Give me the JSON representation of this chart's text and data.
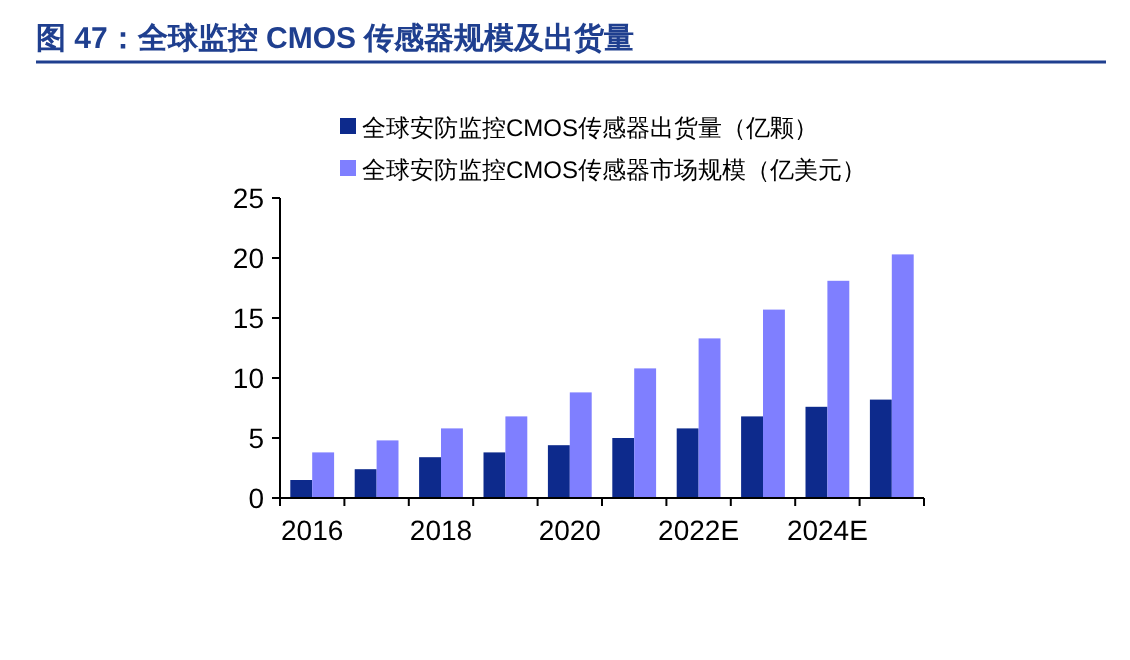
{
  "chart_data": {
    "type": "bar",
    "title": "图 47：全球监控 CMOS 传感器规模及出货量",
    "categories": [
      "2016",
      null,
      "2018",
      null,
      "2020",
      null,
      "2022E",
      null,
      "2024E",
      null
    ],
    "series": [
      {
        "name": "全球安防监控CMOS传感器出货量（亿颗）",
        "color": "#0d2a8c",
        "values": [
          1.5,
          2.4,
          3.4,
          3.8,
          4.4,
          5.0,
          5.8,
          6.8,
          7.6,
          8.2
        ]
      },
      {
        "name": "全球安防监控CMOS传感器市场规模（亿美元）",
        "color": "#7f7fff",
        "values": [
          3.8,
          4.8,
          5.8,
          6.8,
          8.8,
          10.8,
          13.3,
          15.7,
          18.1,
          20.3
        ]
      }
    ],
    "ylim": [
      0,
      25
    ],
    "yticks": [
      0,
      5,
      10,
      15,
      20,
      25
    ],
    "grid": false,
    "legend": "top"
  }
}
